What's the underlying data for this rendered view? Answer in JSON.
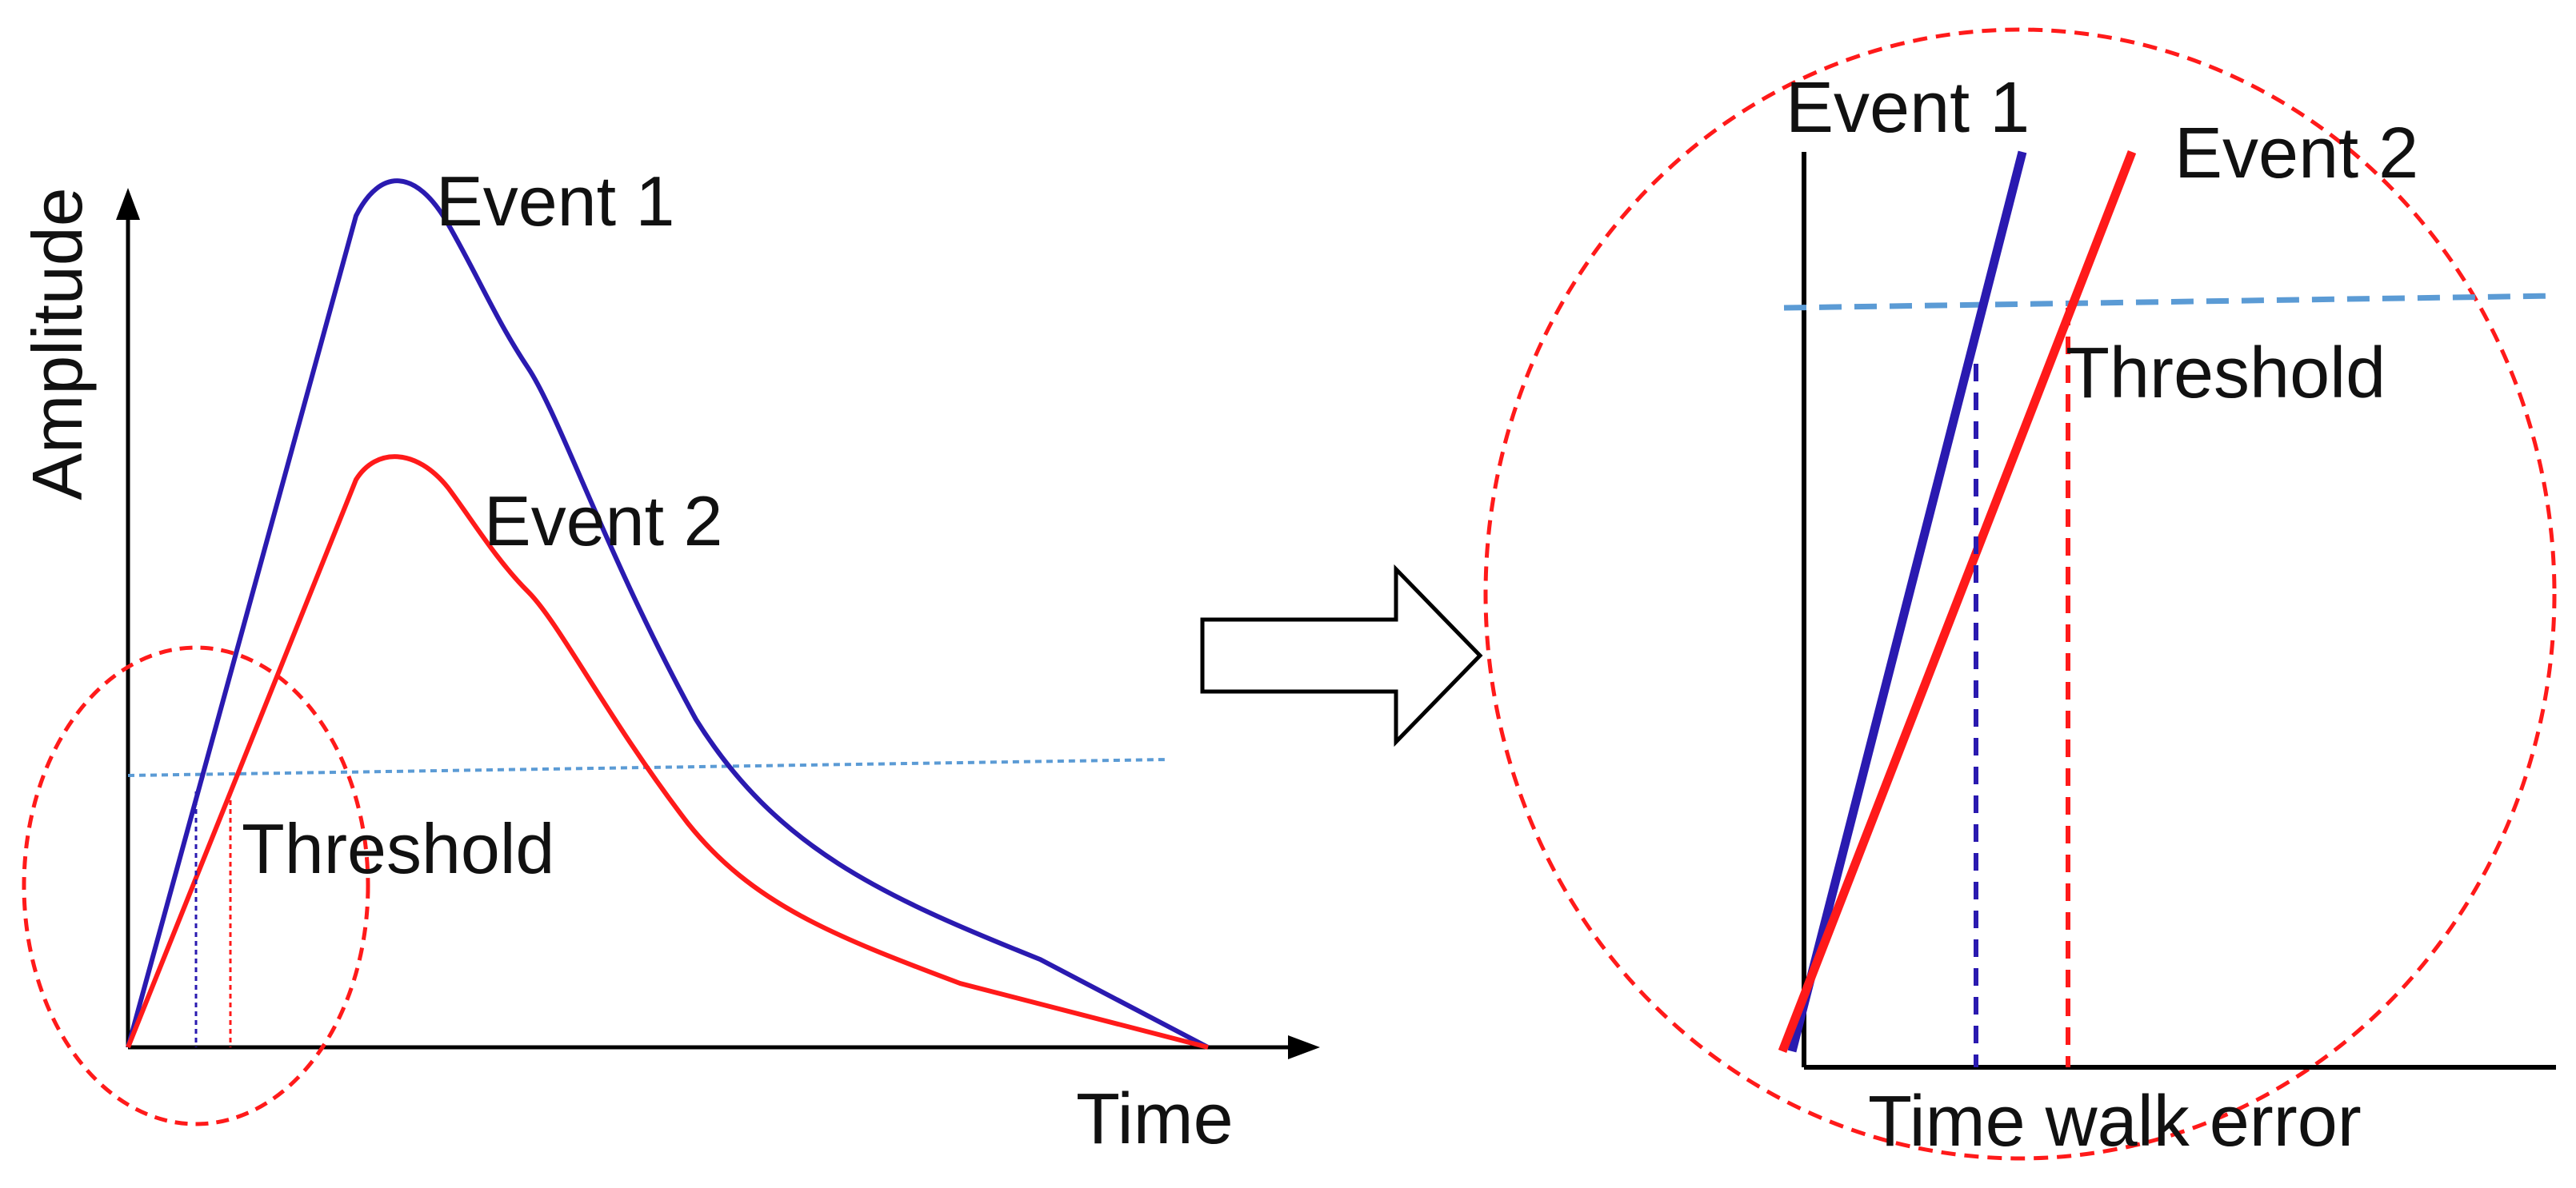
{
  "left_panel": {
    "y_axis_label": "Amplitude",
    "x_axis_label": "Time",
    "event1_label": "Event 1",
    "event2_label": "Event 2",
    "threshold_label": "Threshold"
  },
  "right_panel": {
    "event1_label": "Event 1",
    "event2_label": "Event 2",
    "threshold_label": "Threshold",
    "x_axis_label": "Time walk error"
  },
  "colors": {
    "event1": "#2a1ab0",
    "event2": "#ff1a1a",
    "threshold": "#5b9bd5",
    "zoom_circle": "#ff1a1a",
    "axis": "#000000"
  },
  "icons": {
    "arrow": "right-arrow-outline-icon"
  }
}
